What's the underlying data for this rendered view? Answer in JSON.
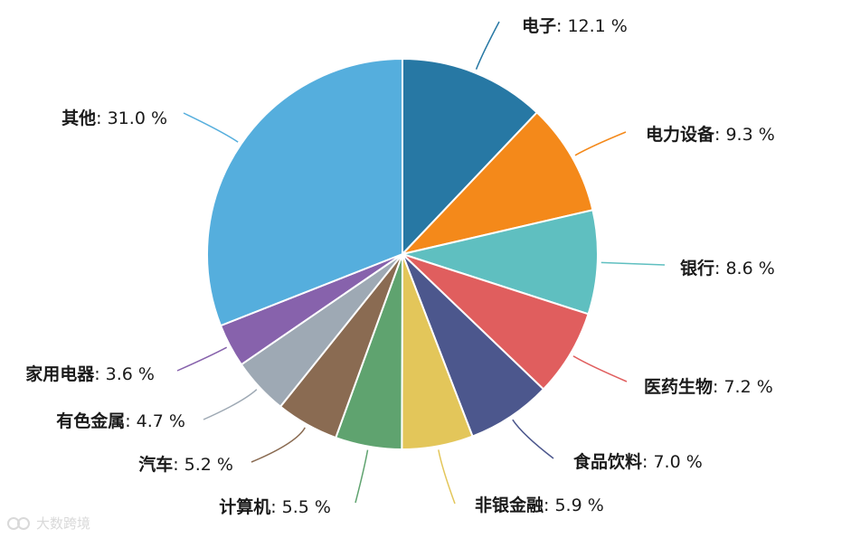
{
  "chart_data": {
    "type": "pie",
    "slices": [
      {
        "name": "电子",
        "value": 12.1,
        "color": "#2778a4"
      },
      {
        "name": "电力设备",
        "value": 9.3,
        "color": "#f4891a"
      },
      {
        "name": "银行",
        "value": 8.6,
        "color": "#5fbfc0"
      },
      {
        "name": "医药生物",
        "value": 7.2,
        "color": "#e05e5e"
      },
      {
        "name": "食品饮料",
        "value": 7.0,
        "color": "#4c578d"
      },
      {
        "name": "非银金融",
        "value": 5.9,
        "color": "#e3c65a"
      },
      {
        "name": "计算机",
        "value": 5.5,
        "color": "#5fa36f"
      },
      {
        "name": "汽车",
        "value": 5.2,
        "color": "#8a6b52"
      },
      {
        "name": "有色金属",
        "value": 4.7,
        "color": "#9ea9b4"
      },
      {
        "name": "家用电器",
        "value": 3.6,
        "color": "#8762ac"
      },
      {
        "name": "其他",
        "value": 31.0,
        "color": "#55aedd"
      }
    ],
    "value_suffix": " %",
    "start_angle_deg": 0,
    "direction": "clockwise"
  },
  "watermark": {
    "text": "大数跨境"
  }
}
